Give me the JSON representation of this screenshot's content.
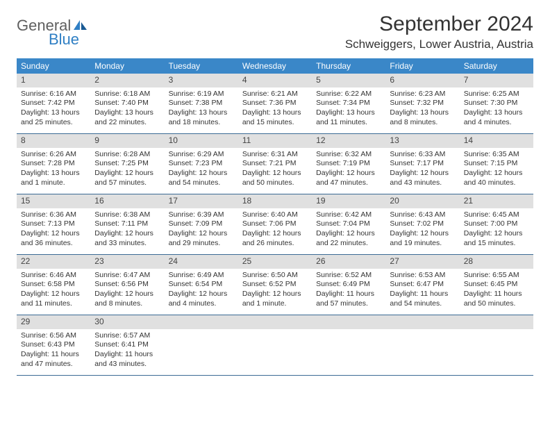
{
  "logo": {
    "main": "General",
    "sub": "Blue"
  },
  "title": "September 2024",
  "location": "Schweiggers, Lower Austria, Austria",
  "colors": {
    "header_bg": "#3a87c8",
    "header_text": "#ffffff",
    "daynum_bg": "#e0e0e0",
    "border": "#3a6a94",
    "logo_main": "#5f5f5f",
    "logo_sub": "#2f7fc4"
  },
  "dayNames": [
    "Sunday",
    "Monday",
    "Tuesday",
    "Wednesday",
    "Thursday",
    "Friday",
    "Saturday"
  ],
  "weeks": [
    [
      {
        "n": "1",
        "sr": "6:16 AM",
        "ss": "7:42 PM",
        "dl": "13 hours and 25 minutes."
      },
      {
        "n": "2",
        "sr": "6:18 AM",
        "ss": "7:40 PM",
        "dl": "13 hours and 22 minutes."
      },
      {
        "n": "3",
        "sr": "6:19 AM",
        "ss": "7:38 PM",
        "dl": "13 hours and 18 minutes."
      },
      {
        "n": "4",
        "sr": "6:21 AM",
        "ss": "7:36 PM",
        "dl": "13 hours and 15 minutes."
      },
      {
        "n": "5",
        "sr": "6:22 AM",
        "ss": "7:34 PM",
        "dl": "13 hours and 11 minutes."
      },
      {
        "n": "6",
        "sr": "6:23 AM",
        "ss": "7:32 PM",
        "dl": "13 hours and 8 minutes."
      },
      {
        "n": "7",
        "sr": "6:25 AM",
        "ss": "7:30 PM",
        "dl": "13 hours and 4 minutes."
      }
    ],
    [
      {
        "n": "8",
        "sr": "6:26 AM",
        "ss": "7:28 PM",
        "dl": "13 hours and 1 minute."
      },
      {
        "n": "9",
        "sr": "6:28 AM",
        "ss": "7:25 PM",
        "dl": "12 hours and 57 minutes."
      },
      {
        "n": "10",
        "sr": "6:29 AM",
        "ss": "7:23 PM",
        "dl": "12 hours and 54 minutes."
      },
      {
        "n": "11",
        "sr": "6:31 AM",
        "ss": "7:21 PM",
        "dl": "12 hours and 50 minutes."
      },
      {
        "n": "12",
        "sr": "6:32 AM",
        "ss": "7:19 PM",
        "dl": "12 hours and 47 minutes."
      },
      {
        "n": "13",
        "sr": "6:33 AM",
        "ss": "7:17 PM",
        "dl": "12 hours and 43 minutes."
      },
      {
        "n": "14",
        "sr": "6:35 AM",
        "ss": "7:15 PM",
        "dl": "12 hours and 40 minutes."
      }
    ],
    [
      {
        "n": "15",
        "sr": "6:36 AM",
        "ss": "7:13 PM",
        "dl": "12 hours and 36 minutes."
      },
      {
        "n": "16",
        "sr": "6:38 AM",
        "ss": "7:11 PM",
        "dl": "12 hours and 33 minutes."
      },
      {
        "n": "17",
        "sr": "6:39 AM",
        "ss": "7:09 PM",
        "dl": "12 hours and 29 minutes."
      },
      {
        "n": "18",
        "sr": "6:40 AM",
        "ss": "7:06 PM",
        "dl": "12 hours and 26 minutes."
      },
      {
        "n": "19",
        "sr": "6:42 AM",
        "ss": "7:04 PM",
        "dl": "12 hours and 22 minutes."
      },
      {
        "n": "20",
        "sr": "6:43 AM",
        "ss": "7:02 PM",
        "dl": "12 hours and 19 minutes."
      },
      {
        "n": "21",
        "sr": "6:45 AM",
        "ss": "7:00 PM",
        "dl": "12 hours and 15 minutes."
      }
    ],
    [
      {
        "n": "22",
        "sr": "6:46 AM",
        "ss": "6:58 PM",
        "dl": "12 hours and 11 minutes."
      },
      {
        "n": "23",
        "sr": "6:47 AM",
        "ss": "6:56 PM",
        "dl": "12 hours and 8 minutes."
      },
      {
        "n": "24",
        "sr": "6:49 AM",
        "ss": "6:54 PM",
        "dl": "12 hours and 4 minutes."
      },
      {
        "n": "25",
        "sr": "6:50 AM",
        "ss": "6:52 PM",
        "dl": "12 hours and 1 minute."
      },
      {
        "n": "26",
        "sr": "6:52 AM",
        "ss": "6:49 PM",
        "dl": "11 hours and 57 minutes."
      },
      {
        "n": "27",
        "sr": "6:53 AM",
        "ss": "6:47 PM",
        "dl": "11 hours and 54 minutes."
      },
      {
        "n": "28",
        "sr": "6:55 AM",
        "ss": "6:45 PM",
        "dl": "11 hours and 50 minutes."
      }
    ],
    [
      {
        "n": "29",
        "sr": "6:56 AM",
        "ss": "6:43 PM",
        "dl": "11 hours and 47 minutes."
      },
      {
        "n": "30",
        "sr": "6:57 AM",
        "ss": "6:41 PM",
        "dl": "11 hours and 43 minutes."
      },
      null,
      null,
      null,
      null,
      null
    ]
  ],
  "labels": {
    "sunrise": "Sunrise:",
    "sunset": "Sunset:",
    "daylight": "Daylight:"
  }
}
